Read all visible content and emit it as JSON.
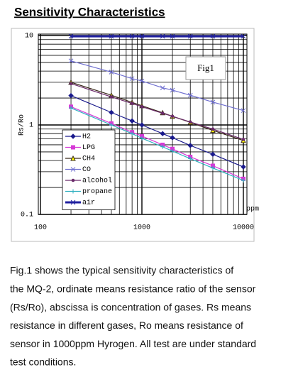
{
  "heading": "Sensitivity Characteristics",
  "chart_data": {
    "type": "line",
    "log_x": true,
    "log_y": true,
    "grid": true,
    "y_label": "Rs/Ro",
    "x_unit": "ppm",
    "annotation": "Fig1",
    "legend": "lower left",
    "x": [
      200,
      500,
      800,
      1000,
      1600,
      2000,
      3000,
      5000,
      10000
    ],
    "xlim": [
      100,
      10000
    ],
    "ylim": [
      0.1,
      10
    ],
    "xticks": [
      100,
      1000,
      10000
    ],
    "yticks": [
      0.1,
      1,
      10
    ],
    "xminor_ticks": [
      200,
      300,
      400,
      500,
      600,
      700,
      800,
      900,
      2000,
      3000,
      4000,
      5000,
      6000,
      7000,
      8000,
      9000
    ],
    "yminor_ticks": [
      0.2,
      0.3,
      0.4,
      0.5,
      0.6,
      0.7,
      0.8,
      0.9,
      2,
      3,
      4,
      5,
      6,
      7,
      8,
      9
    ],
    "series": [
      {
        "name": "H2",
        "color": "#1a1a8c",
        "marker": "diamond",
        "linewidth": 1.2,
        "values": [
          2.13,
          1.38,
          1.11,
          1.0,
          0.8,
          0.72,
          0.59,
          0.47,
          0.34
        ]
      },
      {
        "name": "LPG",
        "color": "#d63ad6",
        "marker": "square",
        "linewidth": 1.2,
        "values": [
          1.6,
          1.04,
          0.83,
          0.75,
          0.6,
          0.54,
          0.44,
          0.35,
          0.25
        ]
      },
      {
        "name": "CH4",
        "color": "#3a2a1a",
        "marker": "triangle",
        "linewidth": 1.2,
        "values": [
          3.0,
          2.15,
          1.79,
          1.64,
          1.37,
          1.25,
          1.07,
          0.87,
          0.67
        ]
      },
      {
        "name": "CO",
        "color": "#7070d0",
        "marker": "x",
        "linewidth": 1.2,
        "values": [
          5.2,
          3.9,
          3.3,
          3.1,
          2.6,
          2.45,
          2.15,
          1.8,
          1.45
        ]
      },
      {
        "name": "alcohol",
        "color": "#6a2a6a",
        "marker": "dot",
        "linewidth": 1.2,
        "values": [
          2.9,
          2.06,
          1.74,
          1.6,
          1.35,
          1.25,
          1.08,
          0.9,
          0.69
        ]
      },
      {
        "name": "propane",
        "color": "#30b0c0",
        "marker": "plus",
        "linewidth": 1.2,
        "values": [
          1.55,
          1.0,
          0.8,
          0.71,
          0.57,
          0.51,
          0.42,
          0.33,
          0.24
        ]
      },
      {
        "name": "air",
        "color": "#2020a0",
        "marker": "x",
        "linewidth": 3,
        "values": [
          9.8,
          9.8,
          9.8,
          9.8,
          9.8,
          9.8,
          9.8,
          9.8,
          9.8
        ]
      }
    ]
  },
  "caption": {
    "lines": [
      "Fig.1 shows the typical sensitivity characteristics of",
      "the MQ-2, ordinate means resistance ratio of the sensor",
      "(Rs/Ro), abscissa is concentration of gases. Rs means",
      "resistance in different gases, Ro means resistance of",
      "sensor in 1000ppm Hyrogen. All test are under standard",
      "test conditions."
    ]
  }
}
